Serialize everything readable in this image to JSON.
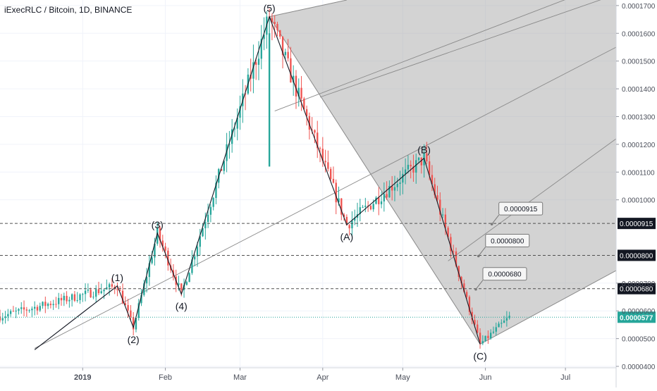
{
  "header": {
    "title": "iExecRLC / Bitcoin, 1D, BINANCE"
  },
  "colors": {
    "up": "#26a69a",
    "down": "#ef5350",
    "current": "#26a69a",
    "wave": "#131722",
    "fill": "#a8a8a8",
    "grid": "#f0f3fa"
  },
  "chart_data": {
    "type": "candlestick",
    "title": "iExecRLC / Bitcoin, 1D, BINANCE",
    "x_tick_labels": [
      "2019",
      "Feb",
      "Mar",
      "Apr",
      "May",
      "Jun",
      "Jul"
    ],
    "x_tick_dates": [
      "2019-01-01",
      "2019-02-01",
      "2019-03-01",
      "2019-04-01",
      "2019-05-01",
      "2019-06-01",
      "2019-07-01"
    ],
    "x_range": [
      "2018-12-01",
      "2019-07-20"
    ],
    "y_range": [
      3.95e-05,
      0.000172
    ],
    "y_tick_labels": [
      "0.0001700",
      "0.0001600",
      "0.0001500",
      "0.0001400",
      "0.0001300",
      "0.0001200",
      "0.0001100",
      "0.0001000",
      "0.0000700",
      "0.0000600",
      "0.0000500",
      "0.0000400"
    ],
    "y_tick_values": [
      0.00017,
      0.00016,
      0.00015,
      0.00014,
      0.00013,
      0.00012,
      0.00011,
      0.0001,
      7e-05,
      6e-05,
      5e-05,
      4e-05
    ],
    "current_price": {
      "value": 5.77e-05,
      "label": "0.0000577"
    },
    "price_levels": [
      {
        "value": 9.15e-05,
        "label": "0.0000915"
      },
      {
        "value": 8e-05,
        "label": "0.0000800"
      },
      {
        "value": 6.8e-05,
        "label": "0.0000680"
      }
    ],
    "wave_labels": [
      {
        "label": "(1)",
        "date": "2019-01-14",
        "value": 6.9e-05,
        "pos": "above"
      },
      {
        "label": "(2)",
        "date": "2019-01-20",
        "value": 5.4e-05,
        "pos": "below"
      },
      {
        "label": "(3)",
        "date": "2019-01-29",
        "value": 8.8e-05,
        "pos": "above"
      },
      {
        "label": "(4)",
        "date": "2019-02-07",
        "value": 6.6e-05,
        "pos": "below"
      },
      {
        "label": "(5)",
        "date": "2019-03-12",
        "value": 0.000166,
        "pos": "above"
      },
      {
        "label": "(A)",
        "date": "2019-04-10",
        "value": 9.1e-05,
        "pos": "below"
      },
      {
        "label": "(B)",
        "date": "2019-05-09",
        "value": 0.000115,
        "pos": "above"
      },
      {
        "label": "(C)",
        "date": "2019-05-30",
        "value": 4.8e-05,
        "pos": "below"
      }
    ],
    "wave_path": [
      [
        "2018-12-14",
        4.6e-05
      ],
      [
        "2019-01-14",
        6.9e-05
      ],
      [
        "2019-01-20",
        5.4e-05
      ],
      [
        "2019-01-29",
        8.8e-05
      ],
      [
        "2019-02-07",
        6.6e-05
      ],
      [
        "2019-03-12",
        0.000166
      ],
      [
        "2019-04-10",
        9.1e-05
      ],
      [
        "2019-05-09",
        0.000115
      ],
      [
        "2019-05-30",
        4.8e-05
      ]
    ],
    "series": [
      {
        "x": [
          "2018-12-01",
          "2019-01-14",
          "2019-01-20",
          "2019-01-29",
          "2019-02-07",
          "2019-03-12",
          "2019-03-25",
          "2019-04-10",
          "2019-05-09",
          "2019-05-30",
          "2019-06-10"
        ],
        "y": [
          5.8e-05,
          6.9e-05,
          5.4e-05,
          8.8e-05,
          6.6e-05,
          0.000166,
          0.000132,
          9.1e-05,
          0.000115,
          4.8e-05,
          5.77e-05
        ]
      }
    ]
  }
}
